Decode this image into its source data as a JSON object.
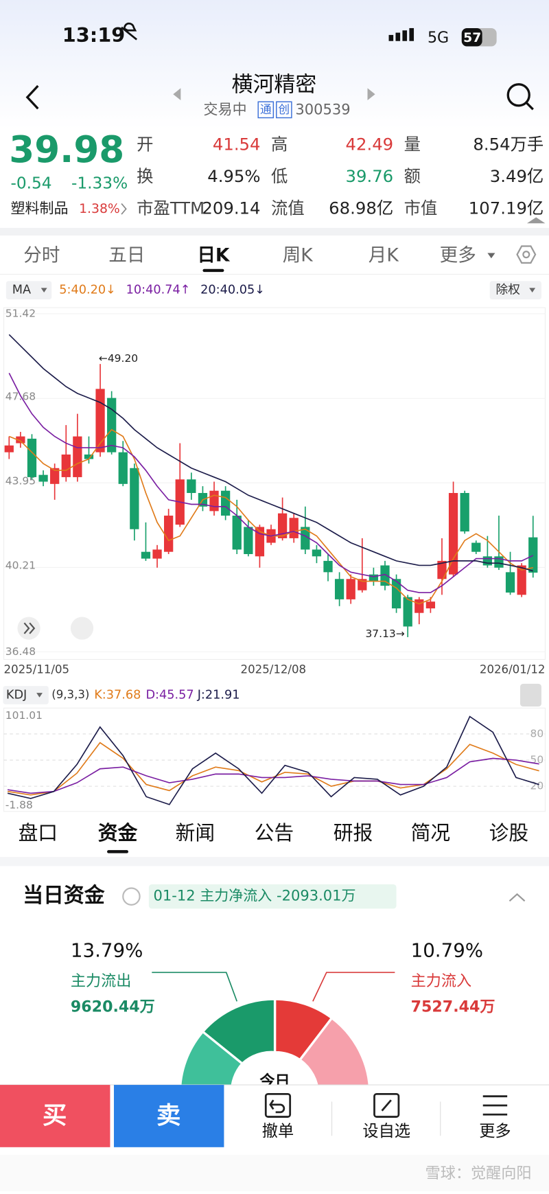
{
  "status": {
    "time": "13:19",
    "network": "5G",
    "battery": "57"
  },
  "header": {
    "title": "横河精密",
    "status": "交易中",
    "badges": [
      "通",
      "创"
    ],
    "code": "300539"
  },
  "quote": {
    "price": "39.98",
    "change": "-0.54",
    "change_pct": "-1.33%",
    "sector": "塑料制品",
    "sector_pct": "1.38%",
    "stats": [
      {
        "label": "开",
        "value": "41.54",
        "color": "#d93a3a"
      },
      {
        "label": "高",
        "value": "42.49",
        "color": "#d93a3a"
      },
      {
        "label": "量",
        "value": "8.54万手",
        "color": "#222222"
      },
      {
        "label": "换",
        "value": "4.95%",
        "color": "#222222"
      },
      {
        "label": "低",
        "value": "39.76",
        "color": "#1a9a6a"
      },
      {
        "label": "额",
        "value": "3.49亿",
        "color": "#222222"
      },
      {
        "label": "市盈TTM",
        "value": "209.14",
        "color": "#222222"
      },
      {
        "label": "流值",
        "value": "68.98亿",
        "color": "#222222"
      },
      {
        "label": "市值",
        "value": "107.19亿",
        "color": "#222222"
      }
    ]
  },
  "tabs": {
    "items": [
      "分时",
      "五日",
      "日K",
      "周K",
      "月K",
      "更多"
    ],
    "active": 2
  },
  "kline": {
    "type": "candlestick",
    "indicator": "MA",
    "adjust": "除权",
    "legend": [
      {
        "text": "5:40.20↓",
        "color": "#e07b1a"
      },
      {
        "text": "10:40.74↑",
        "color": "#7a1fa2"
      },
      {
        "text": "20:40.05↓",
        "color": "#1c1c4a"
      }
    ],
    "ylim": [
      36.48,
      51.42
    ],
    "yticks": [
      51.42,
      47.68,
      43.95,
      40.21,
      36.48
    ],
    "dates": [
      "2025/11/05",
      "2025/12/08",
      "2026/01/12"
    ],
    "up_color": "#e8363a",
    "down_color": "#18a06b",
    "annotations": [
      "←49.20",
      "37.13→"
    ],
    "candles": [
      [
        45.3,
        46.0,
        45.0,
        45.6
      ],
      [
        45.7,
        46.2,
        45.5,
        46.0
      ],
      [
        45.9,
        46.1,
        44.1,
        44.2
      ],
      [
        44.3,
        44.5,
        43.8,
        44.0
      ],
      [
        43.9,
        44.8,
        43.2,
        44.6
      ],
      [
        44.2,
        46.5,
        44.0,
        45.2
      ],
      [
        44.2,
        47.0,
        44.0,
        46.0
      ],
      [
        45.2,
        46.0,
        44.8,
        45.0
      ],
      [
        45.3,
        49.2,
        45.1,
        48.1
      ],
      [
        47.7,
        48.0,
        45.2,
        45.3
      ],
      [
        45.3,
        45.8,
        43.8,
        43.9
      ],
      [
        44.6,
        44.8,
        41.4,
        41.9
      ],
      [
        40.9,
        42.2,
        40.5,
        40.6
      ],
      [
        40.6,
        41.2,
        40.2,
        41.0
      ],
      [
        40.9,
        42.8,
        40.8,
        42.5
      ],
      [
        42.1,
        45.7,
        42.0,
        44.1
      ],
      [
        44.1,
        44.4,
        43.2,
        43.5
      ],
      [
        43.5,
        43.8,
        42.7,
        42.9
      ],
      [
        42.7,
        44.0,
        42.5,
        43.6
      ],
      [
        43.6,
        43.8,
        42.3,
        42.5
      ],
      [
        42.5,
        43.2,
        40.8,
        41.0
      ],
      [
        42.0,
        42.3,
        40.7,
        40.8
      ],
      [
        40.7,
        42.1,
        40.2,
        42.0
      ],
      [
        41.3,
        42.1,
        41.2,
        41.9
      ],
      [
        41.5,
        43.3,
        41.4,
        42.6
      ],
      [
        41.5,
        42.6,
        41.3,
        42.4
      ],
      [
        42.0,
        42.9,
        40.8,
        41.0
      ],
      [
        41.0,
        41.2,
        40.4,
        40.7
      ],
      [
        40.5,
        40.8,
        39.6,
        40.0
      ],
      [
        39.7,
        40.0,
        38.5,
        38.8
      ],
      [
        38.8,
        39.9,
        38.6,
        39.7
      ],
      [
        39.2,
        41.5,
        39.1,
        39.7
      ],
      [
        39.9,
        40.2,
        39.4,
        39.6
      ],
      [
        40.3,
        40.5,
        39.2,
        39.4
      ],
      [
        39.7,
        39.9,
        38.2,
        38.4
      ],
      [
        38.9,
        39.0,
        37.13,
        37.6
      ],
      [
        38.2,
        38.9,
        37.7,
        38.8
      ],
      [
        38.4,
        38.9,
        38.2,
        38.7
      ],
      [
        39.7,
        41.5,
        39.0,
        40.5
      ],
      [
        39.9,
        44.0,
        39.8,
        43.5
      ],
      [
        43.5,
        43.6,
        41.7,
        41.8
      ],
      [
        41.3,
        41.4,
        40.8,
        40.9
      ],
      [
        40.7,
        41.6,
        40.2,
        40.3
      ],
      [
        40.7,
        42.5,
        40.1,
        40.2
      ],
      [
        40.0,
        40.9,
        39.0,
        39.1
      ],
      [
        39.0,
        40.4,
        38.9,
        40.3
      ],
      [
        41.54,
        42.49,
        39.76,
        39.98
      ]
    ],
    "ma": [
      {
        "color": "#e07b1a",
        "values": [
          46.0,
          45.8,
          45.3,
          44.8,
          44.5,
          44.5,
          44.8,
          45.0,
          45.7,
          46.3,
          46.0,
          45.0,
          43.5,
          42.2,
          41.4,
          41.6,
          42.4,
          43.2,
          43.4,
          43.3,
          42.9,
          42.3,
          41.8,
          41.6,
          41.6,
          41.8,
          41.9,
          41.6,
          41.0,
          40.4,
          39.8,
          39.6,
          39.6,
          39.6,
          39.3,
          38.8,
          38.6,
          38.8,
          39.6,
          40.6,
          41.4,
          41.7,
          41.4,
          40.9,
          40.4,
          40.1,
          40.2
        ]
      },
      {
        "color": "#7a1fa2",
        "values": [
          48.8,
          47.8,
          47.0,
          46.4,
          46.0,
          45.7,
          45.5,
          45.5,
          45.5,
          45.6,
          45.5,
          45.1,
          44.5,
          43.8,
          43.2,
          43.1,
          43.0,
          43.0,
          42.9,
          42.9,
          42.5,
          42.0,
          41.7,
          41.6,
          41.7,
          41.8,
          41.6,
          41.3,
          40.8,
          40.3,
          40.0,
          39.9,
          39.8,
          39.9,
          39.6,
          39.2,
          39.1,
          39.1,
          39.4,
          39.8,
          40.2,
          40.6,
          40.6,
          40.6,
          40.5,
          40.5,
          40.74
        ]
      },
      {
        "color": "#1c1c4a",
        "values": [
          50.5,
          50.0,
          49.5,
          49.0,
          48.6,
          48.2,
          47.9,
          47.7,
          47.5,
          47.2,
          46.8,
          46.3,
          45.9,
          45.5,
          45.2,
          44.9,
          44.6,
          44.4,
          44.2,
          44.0,
          43.7,
          43.4,
          43.2,
          43.0,
          42.8,
          42.6,
          42.4,
          42.2,
          41.9,
          41.6,
          41.3,
          41.1,
          40.9,
          40.7,
          40.5,
          40.4,
          40.3,
          40.3,
          40.4,
          40.5,
          40.5,
          40.5,
          40.4,
          40.4,
          40.3,
          40.2,
          40.05
        ]
      }
    ]
  },
  "kdj": {
    "type": "line",
    "indicator": "KDJ",
    "params": "(9,3,3)",
    "legend": [
      {
        "text": "K:37.68",
        "color": "#e07b1a"
      },
      {
        "text": "D:45.57",
        "color": "#7a1fa2"
      },
      {
        "text": "J:21.91",
        "color": "#1c1c4a"
      }
    ],
    "ylim": [
      -1.88,
      101.01
    ],
    "yticks": [
      80,
      50,
      20
    ],
    "series": [
      {
        "color": "#e07b1a",
        "values": [
          14,
          10,
          14,
          35,
          70,
          52,
          22,
          15,
          32,
          42,
          38,
          25,
          36,
          34,
          20,
          26,
          26,
          18,
          22,
          40,
          68,
          58,
          45,
          37.68
        ]
      },
      {
        "color": "#7a1fa2",
        "values": [
          16,
          12,
          14,
          24,
          40,
          42,
          32,
          24,
          28,
          34,
          34,
          30,
          30,
          32,
          28,
          26,
          26,
          22,
          22,
          30,
          48,
          52,
          50,
          45.57
        ]
      },
      {
        "color": "#1c1c4a",
        "values": [
          12,
          6,
          14,
          45,
          88,
          55,
          8,
          -1,
          40,
          58,
          40,
          12,
          44,
          36,
          8,
          30,
          28,
          10,
          20,
          42,
          100,
          82,
          30,
          21.91
        ]
      }
    ]
  },
  "subtabs": {
    "items": [
      "盘口",
      "资金",
      "新闻",
      "公告",
      "研报",
      "简况",
      "诊股"
    ],
    "active": 1
  },
  "fund": {
    "title": "当日资金",
    "flow": "01-12 主力净流入 -2093.01万",
    "outflow": {
      "pct": "13.79%",
      "label": "主力流出",
      "amount": "9620.44万"
    },
    "inflow": {
      "pct": "10.79%",
      "label": "主力流入",
      "amount": "7527.44万"
    },
    "center": "今日"
  },
  "bottom": {
    "buy": "买",
    "sell": "卖",
    "actions": [
      "撤单",
      "设自选",
      "更多"
    ]
  },
  "watermark": "雪球：觉醒向阳"
}
